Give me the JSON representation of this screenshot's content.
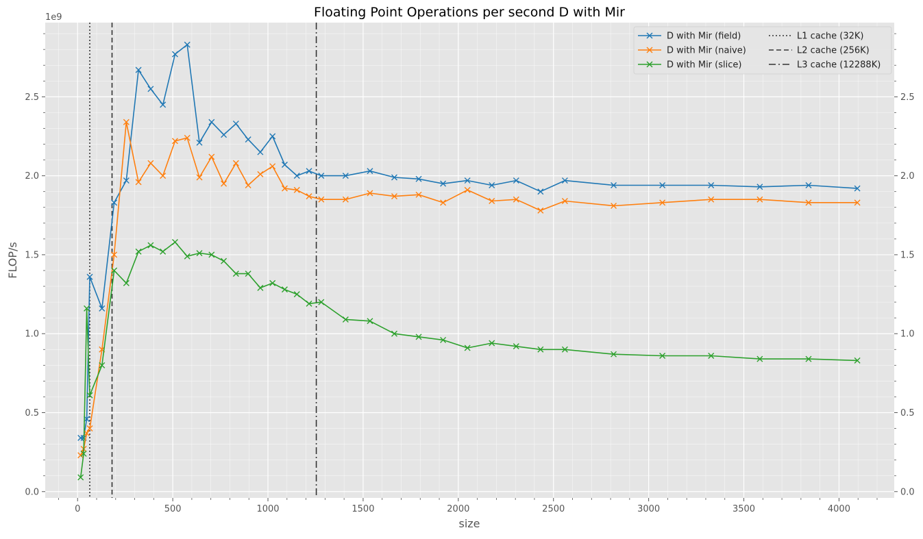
{
  "chart_data": {
    "type": "line",
    "title": "Floating Point Operations per second D with Mir",
    "xlabel": "size",
    "ylabel": "FLOP/s",
    "y_offset_text": "1e9",
    "xlim": [
      -170,
      4290
    ],
    "ylim": [
      -0.04,
      2.97
    ],
    "x_ticks": [
      0,
      500,
      1000,
      1500,
      2000,
      2500,
      3000,
      3500,
      4000
    ],
    "x_tick_labels": [
      "0",
      "500",
      "1000",
      "1500",
      "2000",
      "2500",
      "3000",
      "3500",
      "4000"
    ],
    "y_ticks": [
      0.0,
      0.5,
      1.0,
      1.5,
      2.0,
      2.5
    ],
    "y_tick_labels": [
      "0.0",
      "0.5",
      "1.0",
      "1.5",
      "2.0",
      "2.5"
    ],
    "grid": true,
    "secondary_y_axis": true,
    "legend_position": "top-right",
    "x": [
      16,
      32,
      48,
      64,
      128,
      192,
      256,
      320,
      384,
      448,
      512,
      576,
      640,
      704,
      768,
      832,
      896,
      960,
      1024,
      1088,
      1152,
      1216,
      1280,
      1408,
      1536,
      1664,
      1792,
      1920,
      2048,
      2176,
      2304,
      2432,
      2560,
      2816,
      3072,
      3328,
      3584,
      3840,
      4096
    ],
    "series": [
      {
        "name": "D with Mir (field)",
        "color": "#1f77b4",
        "marker": "x",
        "values": [
          0.34,
          0.34,
          0.46,
          1.36,
          1.16,
          1.83,
          1.97,
          2.67,
          2.55,
          2.45,
          2.77,
          2.83,
          2.21,
          2.34,
          2.26,
          2.33,
          2.23,
          2.15,
          2.25,
          2.07,
          2.0,
          2.03,
          2.0,
          2.0,
          2.03,
          1.99,
          1.98,
          1.95,
          1.97,
          1.94,
          1.97,
          1.9,
          1.97,
          1.94,
          1.94,
          1.94,
          1.93,
          1.94,
          1.92
        ]
      },
      {
        "name": "D with Mir (naive)",
        "color": "#ff7f0e",
        "marker": "x",
        "values": [
          0.23,
          0.27,
          0.37,
          0.4,
          0.9,
          1.5,
          2.34,
          1.96,
          2.08,
          2.0,
          2.22,
          2.24,
          1.99,
          2.12,
          1.95,
          2.08,
          1.94,
          2.01,
          2.06,
          1.92,
          1.91,
          1.87,
          1.85,
          1.85,
          1.89,
          1.87,
          1.88,
          1.83,
          1.91,
          1.84,
          1.85,
          1.78,
          1.84,
          1.81,
          1.83,
          1.85,
          1.85,
          1.83,
          1.83
        ]
      },
      {
        "name": "D with Mir (slice)",
        "color": "#2ca02c",
        "marker": "x",
        "values": [
          0.09,
          0.24,
          1.16,
          0.61,
          0.8,
          1.4,
          1.32,
          1.52,
          1.56,
          1.52,
          1.58,
          1.49,
          1.51,
          1.5,
          1.46,
          1.38,
          1.38,
          1.29,
          1.32,
          1.28,
          1.25,
          1.19,
          1.2,
          1.09,
          1.08,
          1.0,
          0.98,
          0.96,
          0.91,
          0.94,
          0.92,
          0.9,
          0.9,
          0.87,
          0.86,
          0.86,
          0.84,
          0.84,
          0.83
        ]
      }
    ],
    "vlines": [
      {
        "name": "L1 cache (32K)",
        "x": 64,
        "dash": "2,3"
      },
      {
        "name": "L2 cache (256K)",
        "x": 181,
        "dash": "7,4"
      },
      {
        "name": "L3 cache (12288K)",
        "x": 1254,
        "dash": "10,4,2,4"
      }
    ]
  }
}
